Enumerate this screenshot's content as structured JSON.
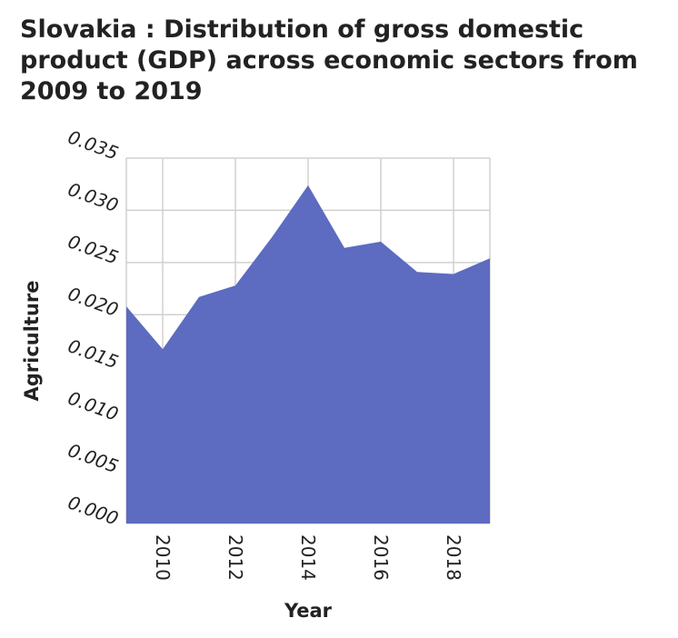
{
  "chart_data": {
    "type": "area",
    "title": "Slovakia : Distribution of gross domestic product (GDP) across economic sectors from 2009 to 2019",
    "xlabel": "Year",
    "ylabel": "Agriculture",
    "x": [
      2009,
      2010,
      2011,
      2012,
      2013,
      2014,
      2015,
      2016,
      2017,
      2018,
      2019
    ],
    "values": [
      0.0208,
      0.0167,
      0.0217,
      0.0228,
      0.0274,
      0.0324,
      0.0264,
      0.027,
      0.0241,
      0.0239,
      0.0254
    ],
    "xlim": [
      2009,
      2019
    ],
    "ylim": [
      0,
      0.035
    ],
    "x_ticks": [
      "2010",
      "2012",
      "2014",
      "2016",
      "2018"
    ],
    "y_ticks": [
      "0.000",
      "0.005",
      "0.010",
      "0.015",
      "0.020",
      "0.025",
      "0.030",
      "0.035"
    ],
    "grid": true,
    "fill_color": "#5d6bc0"
  }
}
